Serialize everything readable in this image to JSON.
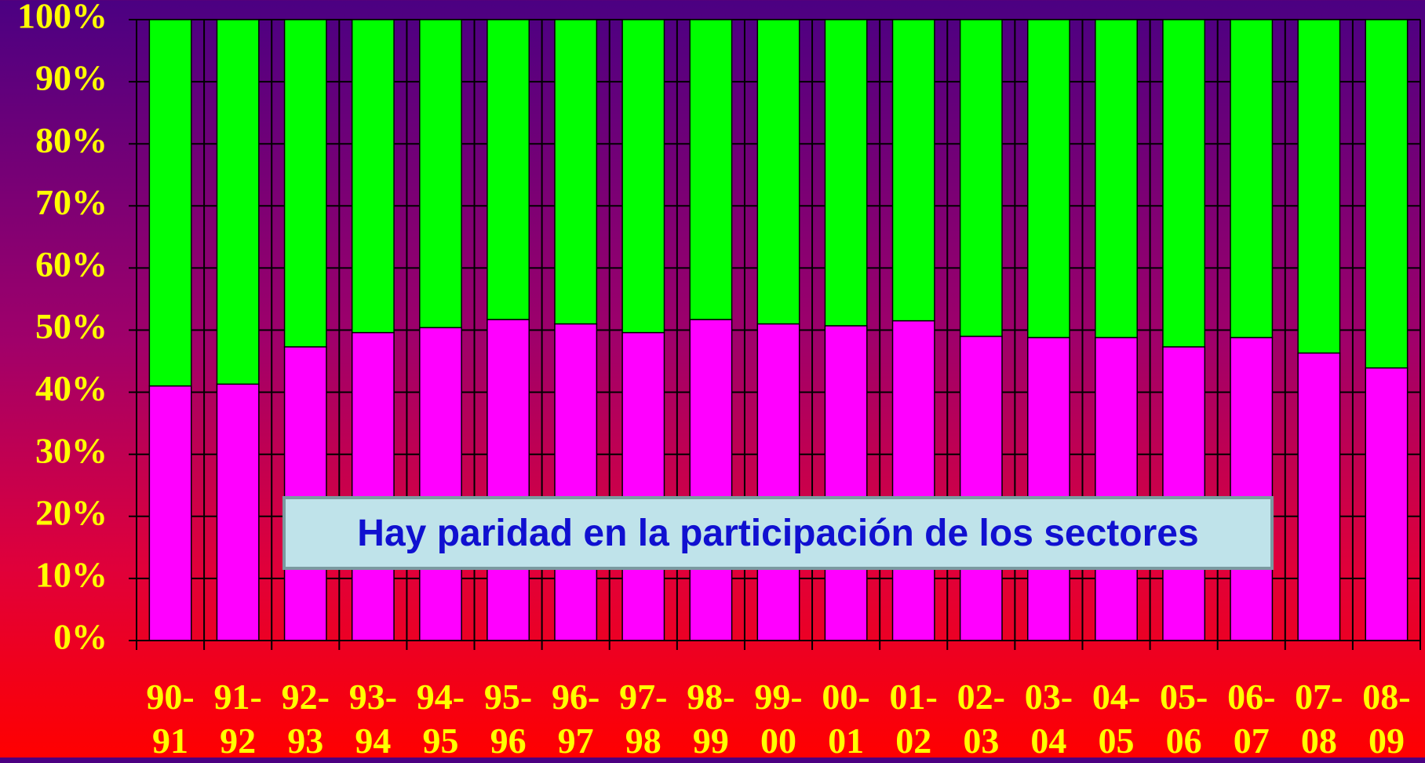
{
  "chart_data": {
    "type": "stacked_bar",
    "categories": [
      "90-91",
      "91-92",
      "92-93",
      "93-94",
      "94-95",
      "95-96",
      "96-97",
      "97-98",
      "98-99",
      "99-00",
      "00-01",
      "01-02",
      "02-03",
      "03-04",
      "04-05",
      "05-06",
      "06-07",
      "07-08",
      "08-09"
    ],
    "series": [
      {
        "color": "#ff00ff",
        "values": [
          41.0,
          41.3,
          47.3,
          49.6,
          50.4,
          51.7,
          51.0,
          49.6,
          51.7,
          51.0,
          50.7,
          51.5,
          49.0,
          48.8,
          48.8,
          47.3,
          48.8,
          46.3,
          43.9
        ]
      },
      {
        "color": "#00ff00",
        "values": [
          59.0,
          58.7,
          52.7,
          50.4,
          49.6,
          48.3,
          49.0,
          50.4,
          48.3,
          49.0,
          49.3,
          48.5,
          51.0,
          51.2,
          51.2,
          52.7,
          51.2,
          53.7,
          56.1
        ]
      }
    ],
    "ylim": [
      0,
      100
    ],
    "yticks": [
      {
        "value": 0,
        "label": "0%"
      },
      {
        "value": 10,
        "label": "10%"
      },
      {
        "value": 20,
        "label": "20%"
      },
      {
        "value": 30,
        "label": "30%"
      },
      {
        "value": 40,
        "label": "40%"
      },
      {
        "value": 50,
        "label": "50%"
      },
      {
        "value": 60,
        "label": "60%"
      },
      {
        "value": 70,
        "label": "70%"
      },
      {
        "value": 80,
        "label": "80%"
      },
      {
        "value": 90,
        "label": "90%"
      },
      {
        "value": 100,
        "label": "100%"
      }
    ],
    "grid": true,
    "annotation": "Hay paridad en la participación de los sectores"
  }
}
